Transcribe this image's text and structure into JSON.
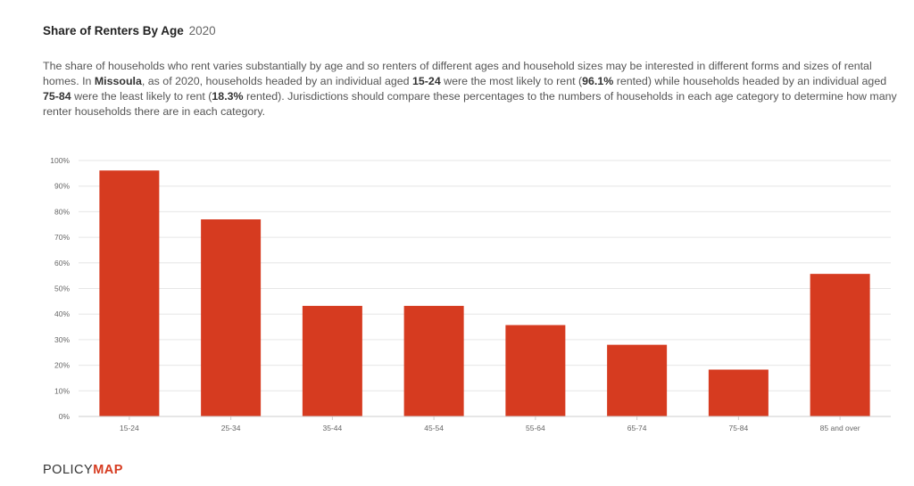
{
  "header": {
    "title": "Share of Renters By Age",
    "year": "2020"
  },
  "description": {
    "p1": "The share of households who rent varies substantially by age and so renters of different ages and household sizes may be interested in different forms and sizes of rental homes. In ",
    "place": "Missoula",
    "p2": ", as of 2020, households headed by an individual aged ",
    "most_age": "15-24",
    "p3": " were the most likely to rent (",
    "most_pct": "96.1%",
    "p4": " rented) while households headed by an individual aged ",
    "least_age": "75-84",
    "p5": " were the least likely to rent (",
    "least_pct": "18.3%",
    "p6": " rented). Jurisdictions should compare these percentages to the numbers of households in each age category to determine how many renter households there are in each category."
  },
  "chart_data": {
    "type": "bar",
    "categories": [
      "15-24",
      "25-34",
      "35-44",
      "45-54",
      "55-64",
      "65-74",
      "75-84",
      "85 and over"
    ],
    "values": [
      96.1,
      77.0,
      43.2,
      43.2,
      35.7,
      28.0,
      18.3,
      55.7
    ],
    "ylim": [
      0,
      100
    ],
    "yticks": [
      "0%",
      "10%",
      "20%",
      "30%",
      "40%",
      "50%",
      "60%",
      "70%",
      "80%",
      "90%",
      "100%"
    ],
    "bar_color": "#d63b20",
    "grid": true
  },
  "footer": {
    "logo_light": "POLICY",
    "logo_bold": "MAP"
  }
}
